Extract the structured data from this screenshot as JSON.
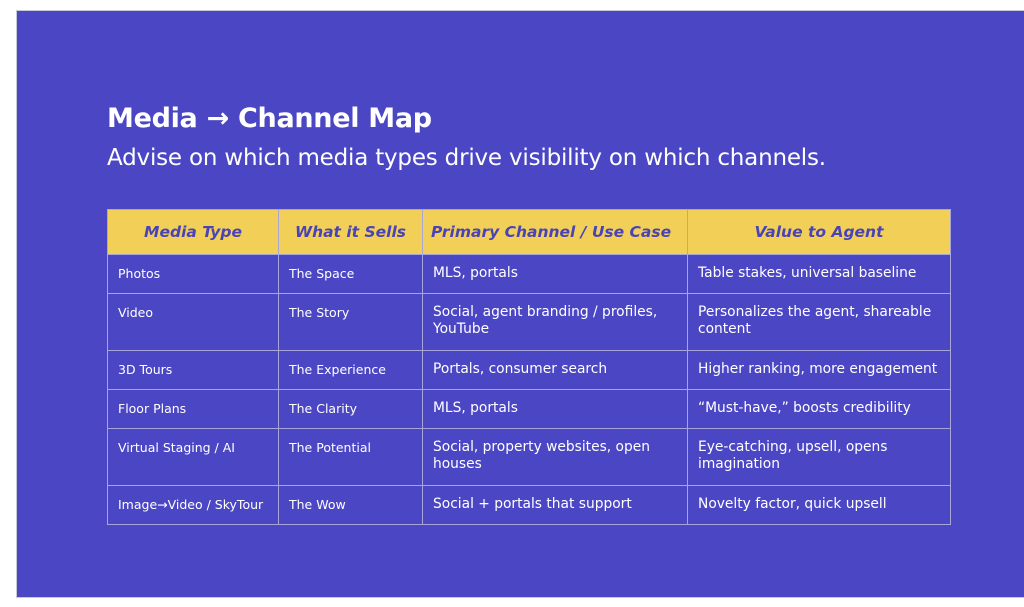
{
  "slide": {
    "title": "Media → Channel Map",
    "subtitle": "Advise on which media types drive visibility on which channels."
  },
  "table": {
    "headers": [
      "Media Type",
      "What it Sells",
      "Primary Channel / Use Case",
      "Value to Agent"
    ],
    "rows": [
      [
        "Photos",
        "The Space",
        "MLS, portals",
        "Table stakes, universal baseline"
      ],
      [
        "Video",
        "The Story",
        "Social, agent branding / profiles, YouTube",
        "Personalizes the agent, shareable content"
      ],
      [
        "3D Tours",
        "The Experience",
        "Portals, consumer search",
        "Higher ranking, more engagement"
      ],
      [
        "Floor Plans",
        "The Clarity",
        "MLS, portals",
        "“Must-have,” boosts credibility"
      ],
      [
        "Virtual Staging / AI",
        "The Potential",
        "Social, property websites, open houses",
        "Eye-catching, upsell, opens imagination"
      ],
      [
        "Image→Video / SkyTour",
        "The Wow",
        "Social + portals that support",
        "Novelty factor, quick upsell"
      ]
    ]
  },
  "colors": {
    "background": "#4b46c4",
    "header_fill": "#f2cf57",
    "header_text": "#4a43b8",
    "body_text": "#ffffff"
  }
}
